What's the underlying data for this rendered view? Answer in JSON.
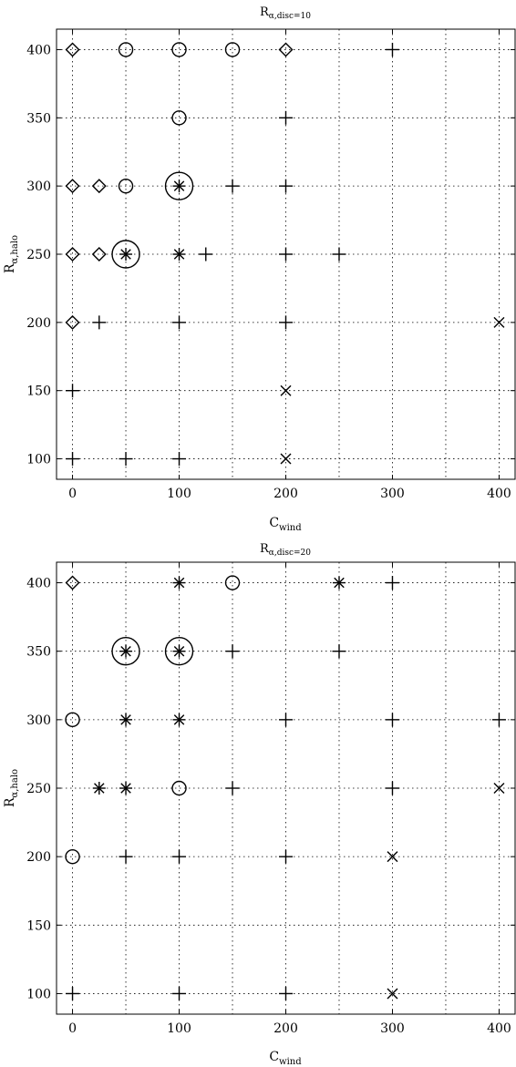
{
  "chart_data": [
    {
      "type": "scatter",
      "title": "R",
      "title_sub": "α,disc=10",
      "xlabel": "C",
      "xlabel_sub": "wind",
      "ylabel": "R",
      "ylabel_sub": "α,halo",
      "xlim": [
        -15,
        415
      ],
      "ylim": [
        85,
        415
      ],
      "xticks": [
        0,
        100,
        200,
        300,
        400
      ],
      "yticks": [
        100,
        150,
        200,
        250,
        300,
        350,
        400
      ],
      "xgrid": [
        0,
        50,
        100,
        150,
        200,
        250,
        300,
        350,
        400
      ],
      "grid": "dotted",
      "points": [
        {
          "x": 0,
          "y": 400,
          "marker": "diamond"
        },
        {
          "x": 50,
          "y": 400,
          "marker": "circle"
        },
        {
          "x": 100,
          "y": 400,
          "marker": "circle"
        },
        {
          "x": 150,
          "y": 400,
          "marker": "circle"
        },
        {
          "x": 200,
          "y": 400,
          "marker": "diamond"
        },
        {
          "x": 300,
          "y": 400,
          "marker": "plus"
        },
        {
          "x": 100,
          "y": 350,
          "marker": "circle"
        },
        {
          "x": 200,
          "y": 350,
          "marker": "plus"
        },
        {
          "x": 0,
          "y": 300,
          "marker": "diamond"
        },
        {
          "x": 25,
          "y": 300,
          "marker": "diamond"
        },
        {
          "x": 50,
          "y": 300,
          "marker": "circle"
        },
        {
          "x": 100,
          "y": 300,
          "marker": "asterisk-circled"
        },
        {
          "x": 150,
          "y": 300,
          "marker": "plus"
        },
        {
          "x": 200,
          "y": 300,
          "marker": "plus"
        },
        {
          "x": 0,
          "y": 250,
          "marker": "diamond"
        },
        {
          "x": 25,
          "y": 250,
          "marker": "diamond"
        },
        {
          "x": 50,
          "y": 250,
          "marker": "asterisk-circled"
        },
        {
          "x": 100,
          "y": 250,
          "marker": "asterisk"
        },
        {
          "x": 125,
          "y": 250,
          "marker": "plus"
        },
        {
          "x": 200,
          "y": 250,
          "marker": "plus"
        },
        {
          "x": 250,
          "y": 250,
          "marker": "plus"
        },
        {
          "x": 0,
          "y": 200,
          "marker": "diamond"
        },
        {
          "x": 25,
          "y": 200,
          "marker": "plus"
        },
        {
          "x": 100,
          "y": 200,
          "marker": "plus"
        },
        {
          "x": 200,
          "y": 200,
          "marker": "plus"
        },
        {
          "x": 400,
          "y": 200,
          "marker": "cross"
        },
        {
          "x": 0,
          "y": 150,
          "marker": "plus"
        },
        {
          "x": 200,
          "y": 150,
          "marker": "cross"
        },
        {
          "x": 0,
          "y": 100,
          "marker": "plus"
        },
        {
          "x": 50,
          "y": 100,
          "marker": "plus"
        },
        {
          "x": 100,
          "y": 100,
          "marker": "plus"
        },
        {
          "x": 200,
          "y": 100,
          "marker": "cross"
        }
      ]
    },
    {
      "type": "scatter",
      "title": "R",
      "title_sub": "α,disc=20",
      "xlabel": "C",
      "xlabel_sub": "wind",
      "ylabel": "R",
      "ylabel_sub": "α,halo",
      "xlim": [
        -15,
        415
      ],
      "ylim": [
        85,
        415
      ],
      "xticks": [
        0,
        100,
        200,
        300,
        400
      ],
      "yticks": [
        100,
        150,
        200,
        250,
        300,
        350,
        400
      ],
      "xgrid": [
        0,
        50,
        100,
        150,
        200,
        250,
        300,
        350,
        400
      ],
      "grid": "dotted",
      "points": [
        {
          "x": 0,
          "y": 400,
          "marker": "diamond"
        },
        {
          "x": 100,
          "y": 400,
          "marker": "asterisk"
        },
        {
          "x": 150,
          "y": 400,
          "marker": "circle"
        },
        {
          "x": 250,
          "y": 400,
          "marker": "asterisk"
        },
        {
          "x": 300,
          "y": 400,
          "marker": "plus"
        },
        {
          "x": 50,
          "y": 350,
          "marker": "asterisk-circled"
        },
        {
          "x": 100,
          "y": 350,
          "marker": "asterisk-circled"
        },
        {
          "x": 150,
          "y": 350,
          "marker": "plus"
        },
        {
          "x": 250,
          "y": 350,
          "marker": "plus"
        },
        {
          "x": 0,
          "y": 300,
          "marker": "circle"
        },
        {
          "x": 50,
          "y": 300,
          "marker": "asterisk"
        },
        {
          "x": 100,
          "y": 300,
          "marker": "asterisk"
        },
        {
          "x": 200,
          "y": 300,
          "marker": "plus"
        },
        {
          "x": 300,
          "y": 300,
          "marker": "plus"
        },
        {
          "x": 400,
          "y": 300,
          "marker": "plus"
        },
        {
          "x": 25,
          "y": 250,
          "marker": "asterisk"
        },
        {
          "x": 50,
          "y": 250,
          "marker": "asterisk"
        },
        {
          "x": 100,
          "y": 250,
          "marker": "circle"
        },
        {
          "x": 150,
          "y": 250,
          "marker": "plus"
        },
        {
          "x": 300,
          "y": 250,
          "marker": "plus"
        },
        {
          "x": 400,
          "y": 250,
          "marker": "cross"
        },
        {
          "x": 0,
          "y": 200,
          "marker": "circle"
        },
        {
          "x": 50,
          "y": 200,
          "marker": "plus"
        },
        {
          "x": 100,
          "y": 200,
          "marker": "plus"
        },
        {
          "x": 200,
          "y": 200,
          "marker": "plus"
        },
        {
          "x": 300,
          "y": 200,
          "marker": "cross"
        },
        {
          "x": 0,
          "y": 100,
          "marker": "plus"
        },
        {
          "x": 100,
          "y": 100,
          "marker": "plus"
        },
        {
          "x": 200,
          "y": 100,
          "marker": "plus"
        },
        {
          "x": 300,
          "y": 100,
          "marker": "cross"
        }
      ]
    }
  ]
}
